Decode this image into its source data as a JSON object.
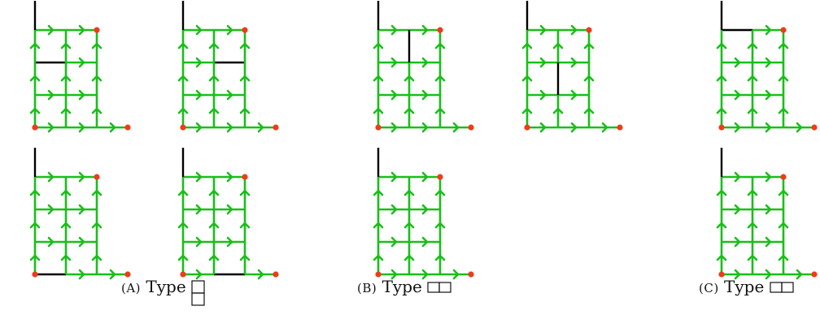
{
  "colors": {
    "path": "#19bf19",
    "wall": "#000000",
    "marker": "#f03a1a"
  },
  "captions": [
    {
      "label": "(A)",
      "word": "Type",
      "symbol": "vertical-two-squares-icon"
    },
    {
      "label": "(B)",
      "word": "Type",
      "symbol": "horizontal-two-squares-icon"
    },
    {
      "label": "(C)",
      "word": "Type",
      "symbol": "horizontal-two-squares-icon"
    }
  ],
  "panels": [
    {
      "group": "A",
      "blocked_edge": "h-row1-col0"
    },
    {
      "group": "A",
      "blocked_edge": "h-row1-col1"
    },
    {
      "group": "A",
      "blocked_edge": "h-row3-col0"
    },
    {
      "group": "A",
      "blocked_edge": "h-row3-col1"
    },
    {
      "group": "B",
      "blocked_edge": "v-col1-row0"
    },
    {
      "group": "B",
      "blocked_edge": "v-col1-row1"
    },
    {
      "group": "B",
      "blocked_edge": "v-col1-row3"
    },
    {
      "group": "C",
      "blocked_edge": "h-row0-col0"
    },
    {
      "group": "C",
      "blocked_edge": "v-col2-row3"
    }
  ]
}
